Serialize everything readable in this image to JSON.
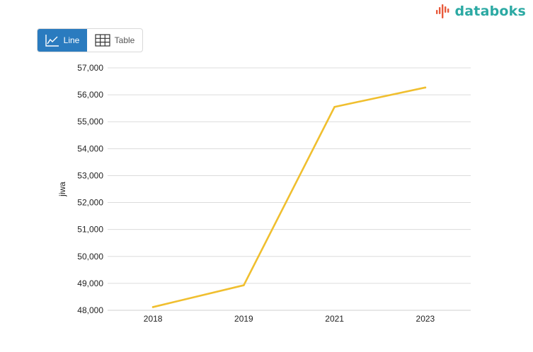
{
  "brand": {
    "name": "databoks",
    "text_color": "#2ba9a3",
    "mark_color": "#e85a3c"
  },
  "view_toggle": {
    "line_label": "Line",
    "table_label": "Table",
    "active": "line",
    "active_color": "#2a7bbf"
  },
  "chart_data": {
    "type": "line",
    "categories": [
      "2018",
      "2019",
      "2021",
      "2023"
    ],
    "series": [
      {
        "values": [
          48120,
          48930,
          55550,
          56270
        ],
        "color": "#f0bf2f"
      }
    ],
    "xlabel": "",
    "ylabel": "jiwa",
    "ylim": [
      48000,
      57000
    ],
    "yticks": [
      48000,
      49000,
      50000,
      51000,
      52000,
      53000,
      54000,
      55000,
      56000,
      57000
    ],
    "grid": true,
    "legend": "none"
  }
}
